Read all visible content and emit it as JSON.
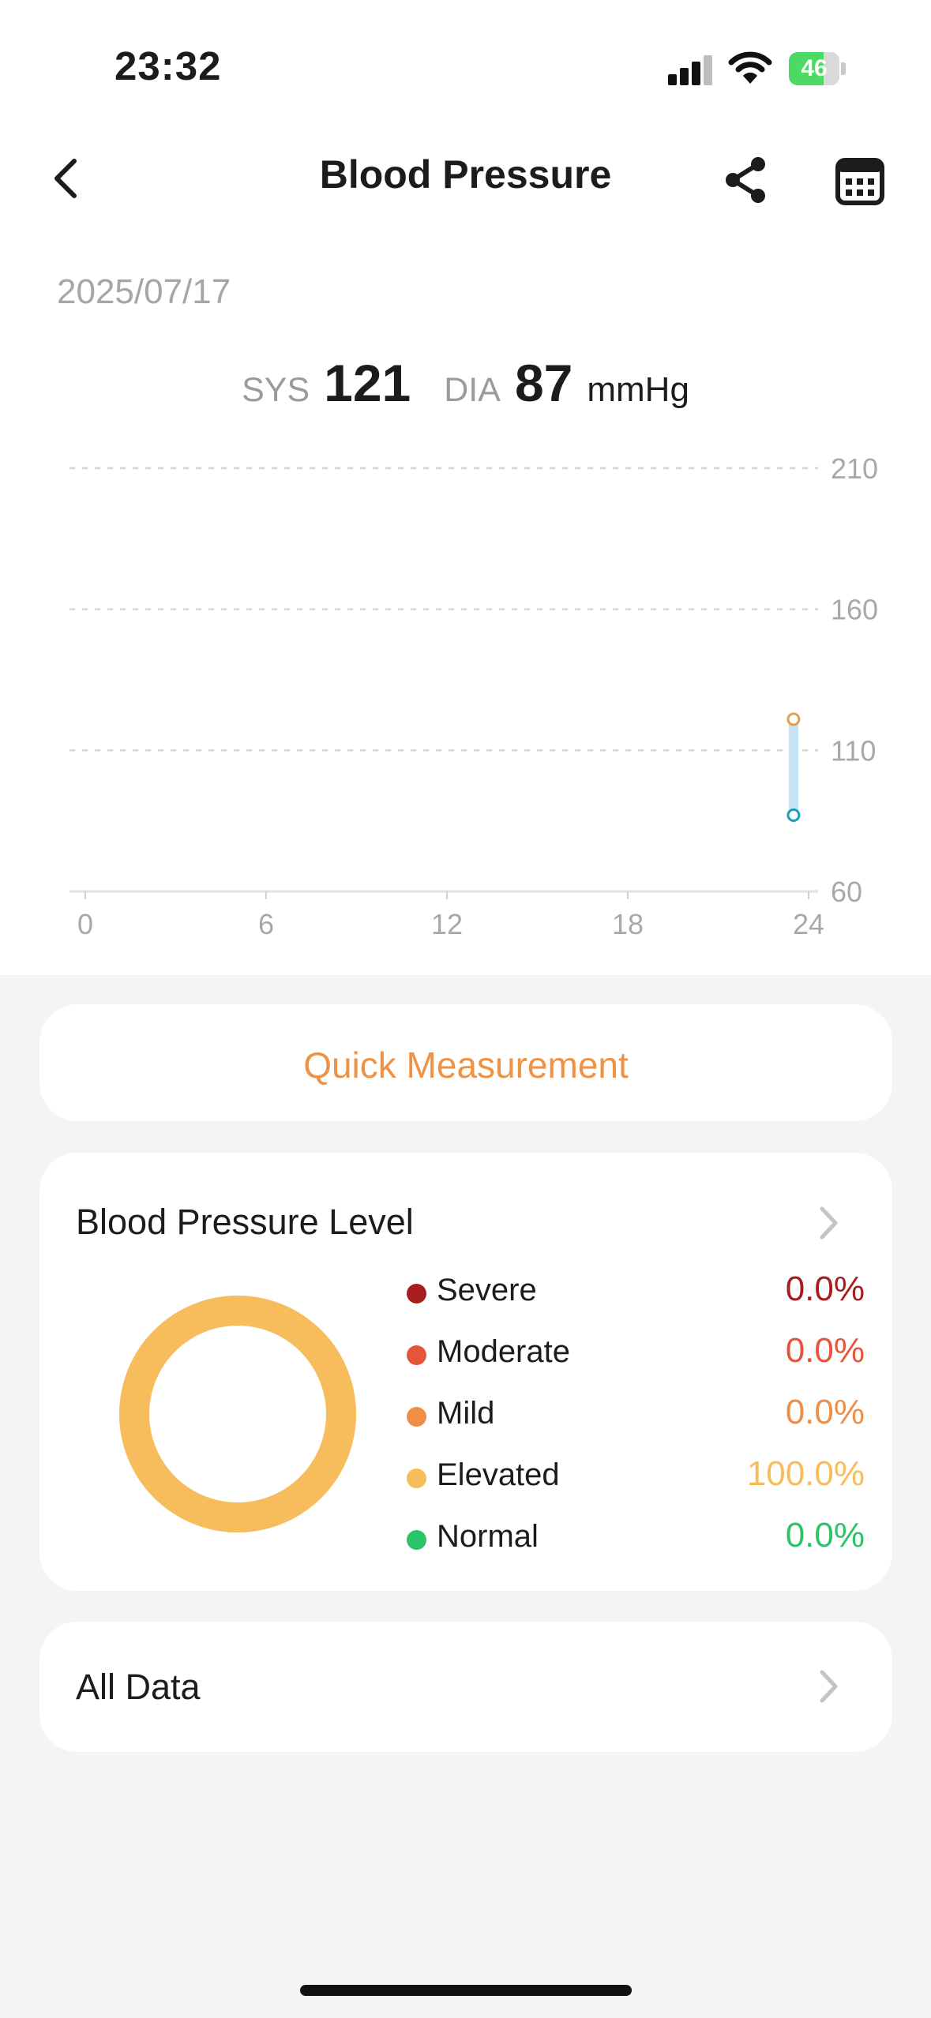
{
  "status_bar": {
    "time": "23:32",
    "battery": "46"
  },
  "header": {
    "title": "Blood Pressure"
  },
  "date": "2025/07/17",
  "reading": {
    "sys_label": "SYS",
    "sys_value": "121",
    "dia_label": "DIA",
    "dia_value": "87",
    "unit": "mmHg"
  },
  "chart_data": {
    "type": "range-bar",
    "x_ticks": [
      "0",
      "6",
      "12",
      "18",
      "24"
    ],
    "y_ticks": [
      "210",
      "160",
      "110",
      "60"
    ],
    "xlim": [
      0,
      24
    ],
    "ylim": [
      60,
      210
    ],
    "grid": true,
    "points": [
      {
        "x": 23.5,
        "sys": 121,
        "dia": 87
      }
    ],
    "colors": {
      "sys": "#e0a04c",
      "dia": "#1aa0b0",
      "bar": "#c4e4f5"
    }
  },
  "quick_measurement": {
    "label": "Quick Measurement"
  },
  "level_card": {
    "title": "Blood Pressure Level",
    "items": [
      {
        "name": "Severe",
        "value": "0.0%",
        "color": "#a61d1d"
      },
      {
        "name": "Moderate",
        "value": "0.0%",
        "color": "#e5553b"
      },
      {
        "name": "Mild",
        "value": "0.0%",
        "color": "#ee8f48"
      },
      {
        "name": "Elevated",
        "value": "100.0%",
        "color": "#f7bd5c"
      },
      {
        "name": "Normal",
        "value": "0.0%",
        "color": "#2cc36b"
      }
    ],
    "donut_fill": 1.0
  },
  "all_data": {
    "label": "All Data"
  }
}
